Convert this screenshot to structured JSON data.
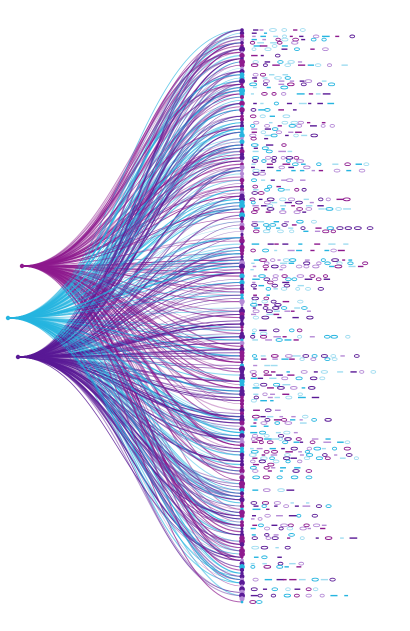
{
  "diagram": {
    "type": "fan-flow",
    "sources": [
      {
        "name": "source-magenta",
        "color": "#8e1a8e"
      },
      {
        "name": "source-cyan",
        "color": "#26b5e0"
      },
      {
        "name": "source-violet",
        "color": "#5a1a96"
      }
    ],
    "palette": {
      "magenta": "#8e1a8e",
      "cyan": "#26b5e0",
      "violet": "#5a1a96",
      "lavender": "#b58ad6",
      "pale_cyan": "#9fdcf0"
    },
    "targets_count": 180,
    "links_count": 460,
    "glyph_rows": 180
  }
}
